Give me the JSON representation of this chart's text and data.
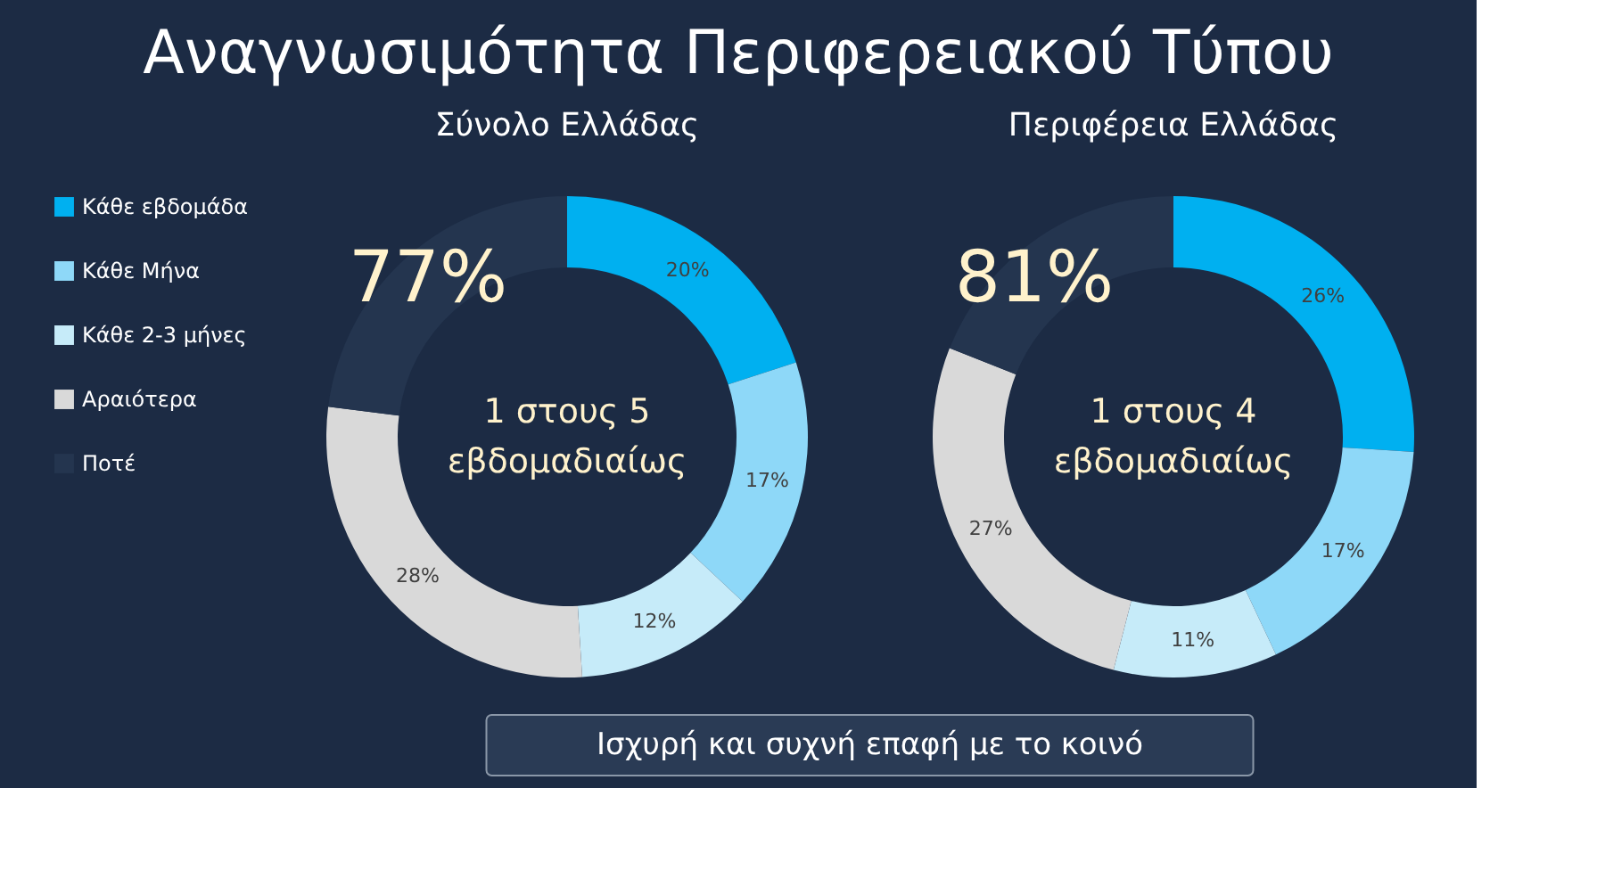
{
  "chart_data": [
    {
      "type": "donut",
      "title": "Αναγνωσιμότητα Περιφερειακού Τύπου",
      "subtitle": "Σύνολο Ελλάδας",
      "categories": [
        "Κάθε εβδομάδα",
        "Κάθε Μήνα",
        "Κάθε 2-3 μήνες",
        "Αραιότερα",
        "Ποτέ"
      ],
      "values": [
        20,
        17,
        12,
        28,
        23
      ],
      "colors": [
        "#00b0f0",
        "#8ed8f8",
        "#c6ebf9",
        "#d9d9d9",
        "#24354f"
      ],
      "value_labels": [
        "20%",
        "17%",
        "12%",
        "28%",
        null
      ],
      "legend": "left",
      "annotations": [
        "77%",
        "1 στους 5\nεβδομαδιαίως"
      ]
    },
    {
      "type": "donut",
      "subtitle": "Περιφέρεια Ελλάδας",
      "categories": [
        null,
        null,
        null,
        null,
        null
      ],
      "values": [
        26,
        17,
        11,
        27,
        19
      ],
      "colors": [
        "#00b0f0",
        "#8ed8f8",
        "#c6ebf9",
        "#d9d9d9",
        "#24354f"
      ],
      "value_labels": [
        "26%",
        "17%",
        "11%",
        "27%",
        null
      ],
      "annotations": [
        "81%",
        "1 στους 4\nεβδομαδιαίως"
      ]
    },
    {
      "type": "other",
      "annotations": [
        "Ισχυρή και συχνή επαφή με το κοινό"
      ]
    }
  ]
}
